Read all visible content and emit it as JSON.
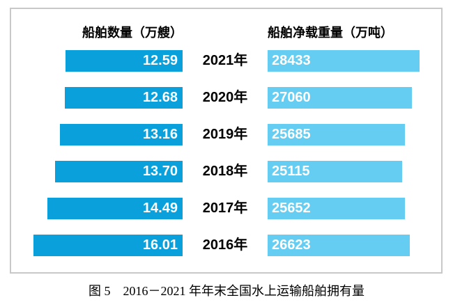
{
  "header": {
    "left": "船舶数量（万艘）",
    "right": "船舶净载重量（万吨）"
  },
  "caption": "图 5　2016－2021 年年末全国水上运输船舶拥有量",
  "colors": {
    "left_bar": "#0aa0dc",
    "right_bar": "#66cdf2",
    "box_border": "#c8c8c8",
    "value_text": "#ffffff",
    "label_text": "#000000"
  },
  "chart_data": {
    "type": "bar",
    "orientation": "horizontal",
    "layout": "bidirectional-tornado",
    "title": "图 5　2016－2021 年年末全国水上运输船舶拥有量",
    "categories": [
      "2021年",
      "2020年",
      "2019年",
      "2018年",
      "2017年",
      "2016年"
    ],
    "series": [
      {
        "name": "船舶数量（万艘）",
        "side": "left",
        "axis_min": 0,
        "values": [
          12.59,
          12.68,
          13.16,
          13.7,
          14.49,
          16.01
        ],
        "labels": [
          "12.59",
          "12.68",
          "13.16",
          "13.70",
          "14.49",
          "16.01"
        ],
        "color": "#0aa0dc"
      },
      {
        "name": "船舶净载重量（万吨）",
        "side": "right",
        "axis_min": 0,
        "values": [
          28433,
          27060,
          25685,
          25115,
          25652,
          26623
        ],
        "labels": [
          "28433",
          "27060",
          "25685",
          "25115",
          "25652",
          "26623"
        ],
        "color": "#66cdf2"
      }
    ],
    "value_labels_visible": true,
    "grid": false,
    "legend": "column-headers"
  }
}
